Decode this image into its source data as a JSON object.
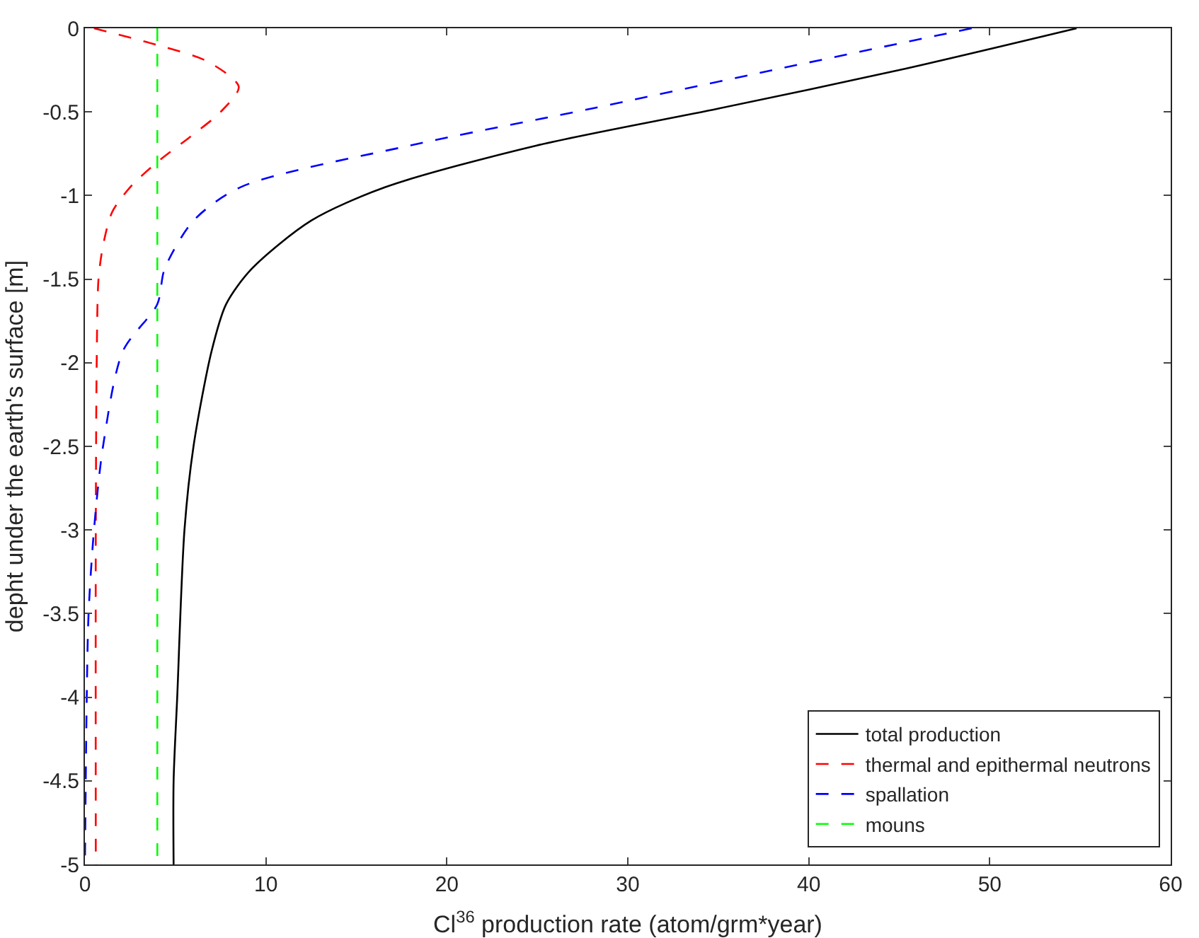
{
  "chart_data": {
    "type": "line",
    "xlabel": "Cl$^{36}$ production rate (atom/grm*year)",
    "ylabel": "depht under the earth's surface [m]",
    "xlim": [
      0,
      60
    ],
    "xticks": [
      0,
      10,
      20,
      30,
      40,
      50,
      60
    ],
    "ylim": [
      -5,
      0
    ],
    "yticks": [
      -5,
      -4.5,
      -4,
      -3.5,
      -3,
      -2.5,
      -2,
      -1.5,
      -1,
      -0.5,
      0
    ],
    "grid": false,
    "legend": "bottom right",
    "marker": "none",
    "series": [
      {
        "name": "total production",
        "color": "#000000",
        "line_style": "solid",
        "x": [
          54.8,
          45,
          35,
          25,
          16.6,
          12.5,
          9.2,
          7.8,
          7,
          6,
          5.5,
          5.1,
          4.9,
          4.9
        ],
        "values": [
          0,
          -0.25,
          -0.48,
          -0.7,
          -0.95,
          -1.15,
          -1.44,
          -1.65,
          -1.93,
          -2.5,
          -3,
          -4,
          -4.5,
          -5
        ]
      },
      {
        "name": "thermal and epithermal neutrons",
        "color": "#ff0000",
        "line_style": "dashed",
        "x": [
          0.5,
          4,
          6.8,
          8.5,
          7.5,
          5.8,
          4,
          2.5,
          1.5,
          1,
          0.75,
          0.65,
          0.6,
          0.6
        ],
        "values": [
          0,
          -0.1,
          -0.2,
          -0.35,
          -0.5,
          -0.65,
          -0.8,
          -0.95,
          -1.1,
          -1.3,
          -1.5,
          -2,
          -3,
          -5
        ]
      },
      {
        "name": "spallation",
        "color": "#0000ff",
        "line_style": "dashed",
        "x": [
          49,
          38,
          28,
          18,
          8.6,
          6,
          4.4,
          4,
          2.1,
          1,
          0.5,
          0.2,
          0.1,
          0
        ],
        "values": [
          0,
          -0.25,
          -0.48,
          -0.7,
          -0.95,
          -1.15,
          -1.44,
          -1.65,
          -1.93,
          -2.5,
          -3,
          -3.5,
          -4,
          -5
        ]
      },
      {
        "name": "mouns",
        "color": "#00ff00",
        "line_style": "dashed",
        "x": [
          4,
          4
        ],
        "values": [
          0,
          -5
        ]
      }
    ]
  }
}
